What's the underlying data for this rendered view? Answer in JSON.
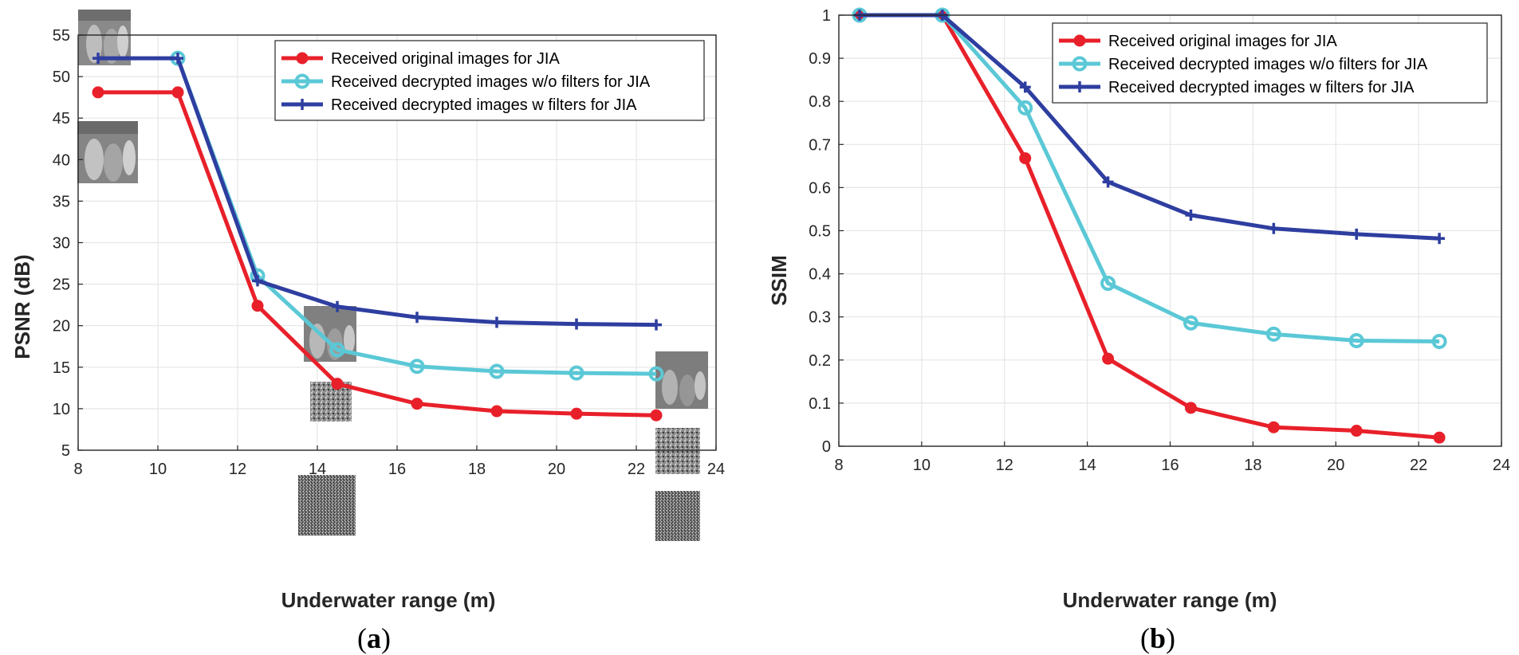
{
  "chart_data": [
    {
      "type": "line",
      "panel_label": "a",
      "xlabel": "Underwater range (m)",
      "ylabel": "PSNR (dB)",
      "xlim": [
        8,
        24
      ],
      "ylim": [
        5,
        55
      ],
      "xticks": [
        8,
        10,
        12,
        14,
        16,
        18,
        20,
        22,
        24
      ],
      "yticks": [
        5,
        10,
        15,
        20,
        25,
        30,
        35,
        40,
        45,
        50,
        55
      ],
      "grid": true,
      "legend_position": "top-right",
      "x": [
        8.5,
        10.5,
        12.5,
        14.5,
        16.5,
        18.5,
        20.5,
        22.5
      ],
      "series": [
        {
          "name": "Received original images for JIA",
          "color": "#e8202a",
          "marker": "dot",
          "x": [
            8.5,
            10.5,
            12.5,
            14.5,
            16.5,
            18.5,
            20.5,
            22.5
          ],
          "values": [
            48.1,
            48.1,
            22.4,
            13.0,
            10.6,
            9.7,
            9.4,
            9.2
          ]
        },
        {
          "name": "Received decrypted images w/o filters for JIA",
          "color": "#5bc8d6",
          "marker": "circle",
          "x": [
            10.5,
            12.5,
            14.5,
            16.5,
            18.5,
            20.5,
            22.5
          ],
          "values": [
            52.2,
            26.0,
            17.1,
            15.1,
            14.5,
            14.3,
            14.2
          ]
        },
        {
          "name": "Received decrypted images w filters for JIA",
          "color": "#2e3ea0",
          "marker": "plus",
          "x": [
            8.5,
            10.5,
            12.5,
            14.5,
            16.5,
            18.5,
            20.5,
            22.5
          ],
          "values": [
            52.2,
            52.2,
            25.4,
            22.3,
            21.0,
            20.4,
            20.2,
            20.1
          ]
        }
      ]
    },
    {
      "type": "line",
      "panel_label": "b",
      "xlabel": "Underwater range (m)",
      "ylabel": "SSIM",
      "xlim": [
        8,
        24
      ],
      "ylim": [
        0,
        1
      ],
      "xticks": [
        8,
        10,
        12,
        14,
        16,
        18,
        20,
        22,
        24
      ],
      "yticks": [
        0,
        0.1,
        0.2,
        0.3,
        0.4,
        0.5,
        0.6,
        0.7,
        0.8,
        0.9,
        1
      ],
      "grid": true,
      "legend_position": "top-right",
      "series": [
        {
          "name": "Received original images for JIA",
          "color": "#e8202a",
          "marker": "dot",
          "x": [
            8.5,
            10.5,
            12.5,
            14.5,
            16.5,
            18.5,
            20.5,
            22.5
          ],
          "values": [
            1,
            1,
            0.668,
            0.203,
            0.089,
            0.044,
            0.036,
            0.02
          ]
        },
        {
          "name": "Received decrypted images w/o filters for JIA",
          "color": "#5bc8d6",
          "marker": "circle",
          "x": [
            8.5,
            10.5,
            12.5,
            14.5,
            16.5,
            18.5,
            20.5,
            22.5
          ],
          "values": [
            1,
            1,
            0.785,
            0.378,
            0.286,
            0.26,
            0.245,
            0.243
          ]
        },
        {
          "name": "Received decrypted images w filters for JIA",
          "color": "#2e3ea0",
          "marker": "plus",
          "x": [
            8.5,
            10.5,
            12.5,
            14.5,
            16.5,
            18.5,
            20.5,
            22.5
          ],
          "values": [
            1,
            1,
            0.833,
            0.613,
            0.536,
            0.505,
            0.492,
            0.482
          ]
        }
      ]
    }
  ]
}
